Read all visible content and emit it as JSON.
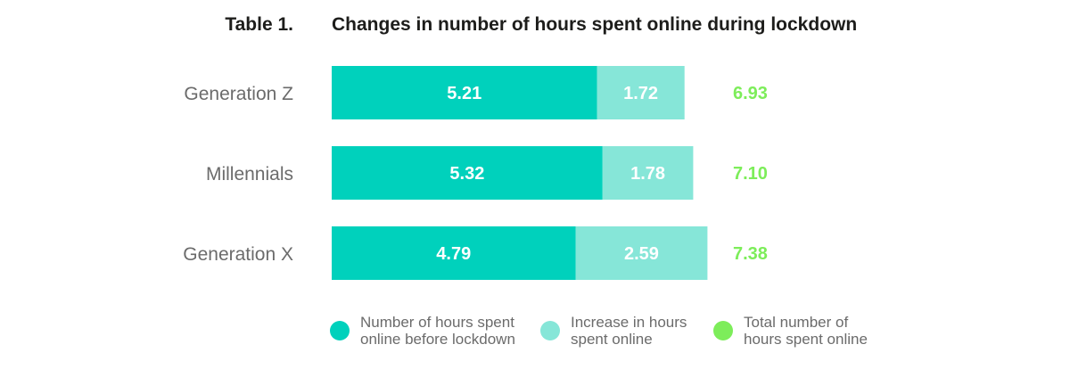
{
  "chart_data": {
    "type": "bar",
    "stacked": true,
    "orientation": "horizontal",
    "table_label": "Table 1.",
    "title": "Changes in number of hours spent online during lockdown",
    "categories": [
      "Generation Z",
      "Millennials",
      "Generation X"
    ],
    "series": [
      {
        "name": "Number of hours spent online before lockdown",
        "values": [
          5.21,
          5.32,
          4.79
        ],
        "labels": [
          "5.21",
          "5.32",
          "4.79"
        ],
        "color": "#00d1bc"
      },
      {
        "name": "Increase in hours spent online",
        "values": [
          1.72,
          1.78,
          2.59
        ],
        "labels": [
          "1.72",
          "1.78",
          "2.59"
        ],
        "color": "#86e6d8"
      }
    ],
    "totals": {
      "name": "Total number of hours spent online",
      "values": [
        6.93,
        7.1,
        7.38
      ],
      "labels": [
        "6.93",
        "7.10",
        "7.38"
      ],
      "color": "#7ded5a"
    },
    "legend_position": "bottom",
    "grid": false
  },
  "legend": [
    {
      "text": "Number of hours spent\nonline before lockdown",
      "color": "#00d1bc"
    },
    {
      "text": "Increase in hours\nspent online",
      "color": "#86e6d8"
    },
    {
      "text": "Total number of\nhours spent online",
      "color": "#7ded5a"
    }
  ]
}
